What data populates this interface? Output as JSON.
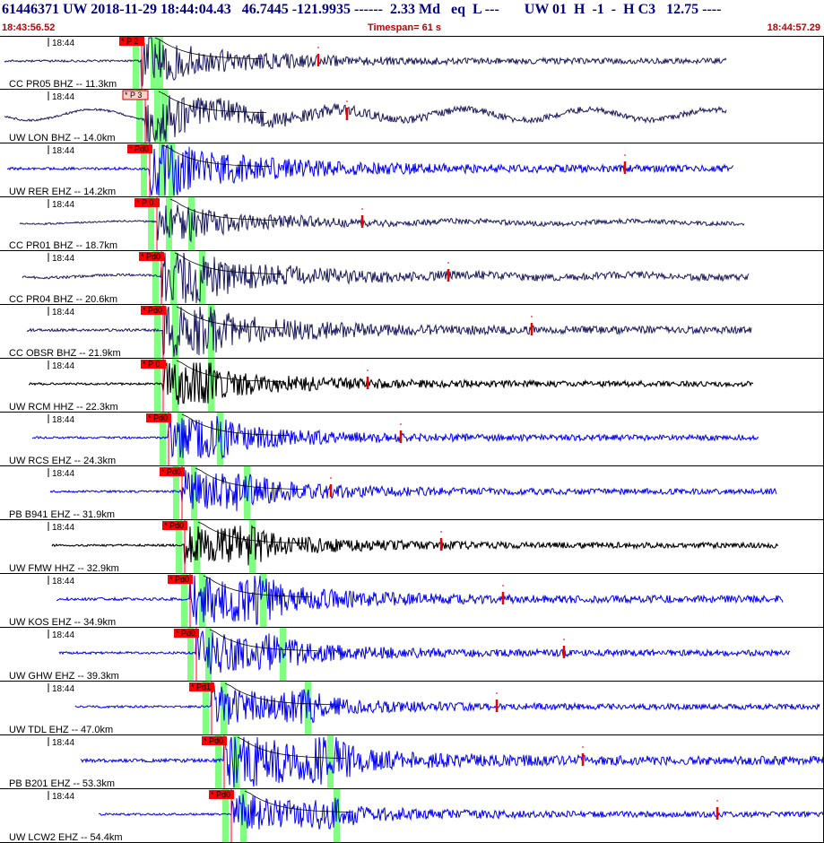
{
  "header": {
    "title": "61446371 UW 2018-11-29 18:44:04.43   46.7445 -121.9935 ------  2.33 Md   eq  L ---       UW 01  H  -1  -  H C3   12.75 ----",
    "start_time": "18:43:56.52",
    "timespan": "Timespan=  61 s",
    "end_time": "18:44:57.29"
  },
  "colors": {
    "header_title": "#000080",
    "header_small": "#c00000",
    "trace_dark": "#1a1a5e",
    "trace_blue": "#0000ee",
    "trace_black": "#000000",
    "pick_box": "#ff0000",
    "window_green": "#80ff80",
    "coda_red": "#ee0000"
  },
  "traces": [
    {
      "label": "CC PR05 BHZ -- 11.3km",
      "tick": "18:44",
      "pick": "* P 2",
      "pick_style": "red",
      "color": "dark",
      "amp": 1.0
    },
    {
      "label": "UW LON BHZ -- 14.0km",
      "tick": "18:44",
      "pick": "* P 3",
      "pick_style": "pink",
      "color": "dark",
      "amp": 1.0
    },
    {
      "label": "UW RER EHZ -- 14.2km",
      "tick": "18:44",
      "pick": "* Pd0",
      "pick_style": "red",
      "color": "blue",
      "amp": 1.3
    },
    {
      "label": "CC PR01 BHZ -- 18.7km",
      "tick": "18:44",
      "pick": "* P 0",
      "pick_style": "red",
      "color": "dark",
      "amp": 0.8
    },
    {
      "label": "CC PR04 BHZ -- 20.6km",
      "tick": "18:44",
      "pick": "* Pd0",
      "pick_style": "red",
      "color": "dark",
      "amp": 1.2
    },
    {
      "label": "CC OBSR BHZ -- 21.9km",
      "tick": "18:44",
      "pick": "* Pd0",
      "pick_style": "red",
      "color": "dark",
      "amp": 1.3
    },
    {
      "label": "UW RCM HHZ -- 22.3km",
      "tick": "18:44",
      "pick": "* P 0",
      "pick_style": "red",
      "color": "black",
      "amp": 1.0
    },
    {
      "label": "UW RCS EHZ -- 24.3km",
      "tick": "18:44",
      "pick": "* Pd0",
      "pick_style": "red",
      "color": "blue",
      "amp": 1.0
    },
    {
      "label": "PB B941 EHZ -- 31.9km",
      "tick": "18:44",
      "pick": "* Pd0",
      "pick_style": "red",
      "color": "blue",
      "amp": 1.0
    },
    {
      "label": "UW FMW HHZ -- 32.9km",
      "tick": "18:44",
      "pick": "* Pd0",
      "pick_style": "red",
      "color": "black",
      "amp": 1.0
    },
    {
      "label": "UW KOS EHZ -- 34.9km",
      "tick": "18:44",
      "pick": "* Pd0",
      "pick_style": "red",
      "color": "blue",
      "amp": 1.3
    },
    {
      "label": "UW GHW EHZ -- 39.3km",
      "tick": "18:44",
      "pick": "* Pd0",
      "pick_style": "red",
      "color": "blue",
      "amp": 1.1
    },
    {
      "label": "UW TDL EHZ -- 47.0km",
      "tick": "18:44",
      "pick": "* Pd1",
      "pick_style": "red",
      "color": "blue",
      "amp": 1.0
    },
    {
      "label": "PB B201 EHZ -- 53.3km",
      "tick": "18:44",
      "pick": "* Pd0",
      "pick_style": "red",
      "color": "blue",
      "amp": 1.6
    },
    {
      "label": "UW LCW2 EHZ -- 54.4km",
      "tick": "18:44",
      "pick": "* Pd0",
      "pick_style": "red",
      "color": "blue",
      "amp": 1.0
    }
  ]
}
